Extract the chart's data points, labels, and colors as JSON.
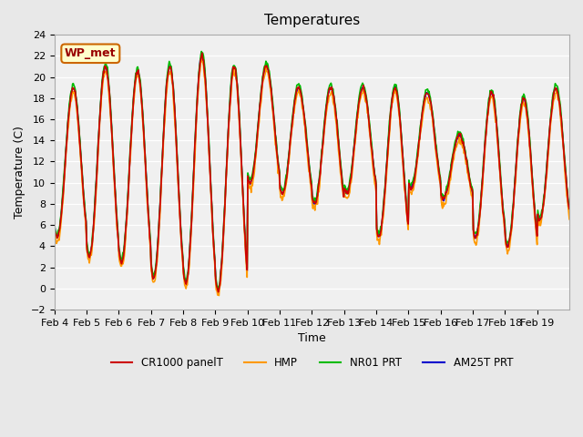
{
  "title": "Temperatures",
  "xlabel": "Time",
  "ylabel": "Temperature (C)",
  "ylim": [
    -2,
    24
  ],
  "yticks": [
    -2,
    0,
    2,
    4,
    6,
    8,
    10,
    12,
    14,
    16,
    18,
    20,
    22,
    24
  ],
  "xtick_labels": [
    "Feb 4",
    "Feb 5",
    "Feb 6",
    "Feb 7",
    "Feb 8",
    "Feb 9",
    "Feb 10",
    "Feb 11",
    "Feb 12",
    "Feb 13",
    "Feb 14",
    "Feb 15",
    "Feb 16",
    "Feb 17",
    "Feb 18",
    "Feb 19"
  ],
  "bg_color": "#e8e8e8",
  "plot_bg_color": "#f0f0f0",
  "legend_entries": [
    "CR1000 panelT",
    "HMP",
    "NR01 PRT",
    "AM25T PRT"
  ],
  "legend_colors": [
    "#cc0000",
    "#ff9900",
    "#00bb00",
    "#0000cc"
  ],
  "annotation_text": "WP_met",
  "annotation_bg": "#ffffcc",
  "annotation_border": "#cc6600",
  "annotation_text_color": "#990000",
  "daily_peaks": [
    19.0,
    21.0,
    20.5,
    21.0,
    22.0,
    21.0,
    21.0,
    19.0,
    19.0,
    19.0,
    19.0,
    18.5,
    14.5,
    18.5,
    18.0,
    19.0
  ],
  "daily_troughs": [
    4.8,
    3.0,
    2.5,
    1.0,
    0.5,
    -0.2,
    10.0,
    9.0,
    8.0,
    9.0,
    5.0,
    9.5,
    8.5,
    4.8,
    4.0,
    6.5
  ],
  "n_days": 16,
  "hours_per_day": 48,
  "peak_hour": 14
}
